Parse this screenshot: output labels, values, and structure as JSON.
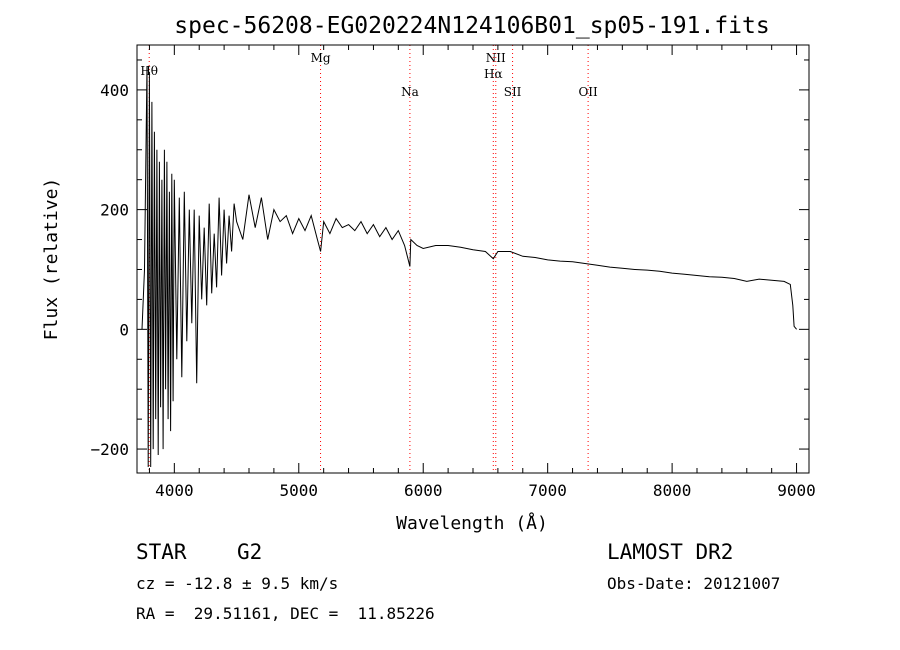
{
  "chart_data": {
    "type": "line",
    "title": "spec-56208-EG020224N124106B01_sp05-191.fits",
    "xlabel": "Wavelength (Å)",
    "ylabel": "Flux (relative)",
    "xlim": [
      3700,
      9100
    ],
    "ylim": [
      -240,
      475
    ],
    "xticks": [
      4000,
      5000,
      6000,
      7000,
      8000,
      9000
    ],
    "yticks": [
      -200,
      0,
      200,
      400
    ],
    "grid": false,
    "line_color": "#000000",
    "marker_line_color": "#ff0000",
    "lines": [
      {
        "label": "Hθ",
        "x": 3798
      },
      {
        "label": "Mg",
        "x": 5175
      },
      {
        "label": "Na",
        "x": 5893
      },
      {
        "label": "NII",
        "x": 6583
      },
      {
        "label": "Hα",
        "x": 6563
      },
      {
        "label": "SII",
        "x": 6718
      },
      {
        "label": "OII",
        "x": 7325
      }
    ],
    "series": [
      {
        "x": [
          3740,
          3760,
          3780,
          3790,
          3800,
          3810,
          3820,
          3830,
          3840,
          3850,
          3860,
          3870,
          3880,
          3890,
          3900,
          3910,
          3920,
          3930,
          3940,
          3950,
          3960,
          3970,
          3980,
          3990,
          4000,
          4020,
          4040,
          4060,
          4080,
          4100,
          4120,
          4140,
          4160,
          4180,
          4200,
          4220,
          4240,
          4260,
          4280,
          4300,
          4320,
          4340,
          4360,
          4380,
          4400,
          4420,
          4440,
          4460,
          4480,
          4500,
          4550,
          4600,
          4650,
          4700,
          4750,
          4800,
          4850,
          4900,
          4950,
          5000,
          5050,
          5100,
          5150,
          5175,
          5200,
          5250,
          5300,
          5350,
          5400,
          5450,
          5500,
          5550,
          5600,
          5650,
          5700,
          5750,
          5800,
          5850,
          5893,
          5900,
          5950,
          6000,
          6100,
          6200,
          6300,
          6400,
          6500,
          6563,
          6600,
          6700,
          6800,
          6900,
          7000,
          7100,
          7200,
          7300,
          7400,
          7500,
          7600,
          7700,
          7800,
          7900,
          8000,
          8100,
          8200,
          8300,
          8400,
          8500,
          8600,
          8700,
          8800,
          8900,
          8950,
          8970,
          8980,
          9000
        ],
        "values": [
          0,
          100,
          440,
          -230,
          430,
          -230,
          380,
          -200,
          330,
          -150,
          300,
          -210,
          280,
          -130,
          250,
          -200,
          300,
          -100,
          280,
          -150,
          230,
          -170,
          260,
          -120,
          250,
          -50,
          220,
          -80,
          230,
          -20,
          200,
          10,
          200,
          -90,
          190,
          50,
          170,
          40,
          210,
          60,
          160,
          70,
          220,
          90,
          200,
          110,
          190,
          130,
          210,
          180,
          150,
          225,
          170,
          220,
          150,
          200,
          180,
          190,
          160,
          185,
          165,
          190,
          150,
          130,
          180,
          160,
          185,
          170,
          175,
          165,
          180,
          160,
          175,
          155,
          170,
          150,
          165,
          140,
          105,
          150,
          140,
          135,
          140,
          140,
          137,
          133,
          130,
          118,
          130,
          130,
          122,
          120,
          116,
          114,
          113,
          110,
          107,
          104,
          102,
          100,
          99,
          97,
          94,
          92,
          90,
          88,
          87,
          85,
          80,
          84,
          82,
          80,
          75,
          40,
          5,
          0
        ]
      }
    ]
  },
  "info": {
    "class_label": "STAR",
    "subclass": "G2",
    "cz_label": "cz = -12.8 ± 9.5 km/s",
    "coords_label": "RA =  29.51161, DEC =  11.85226",
    "survey_label": "LAMOST DR2",
    "obsdate_label": "Obs-Date: 20121007"
  }
}
